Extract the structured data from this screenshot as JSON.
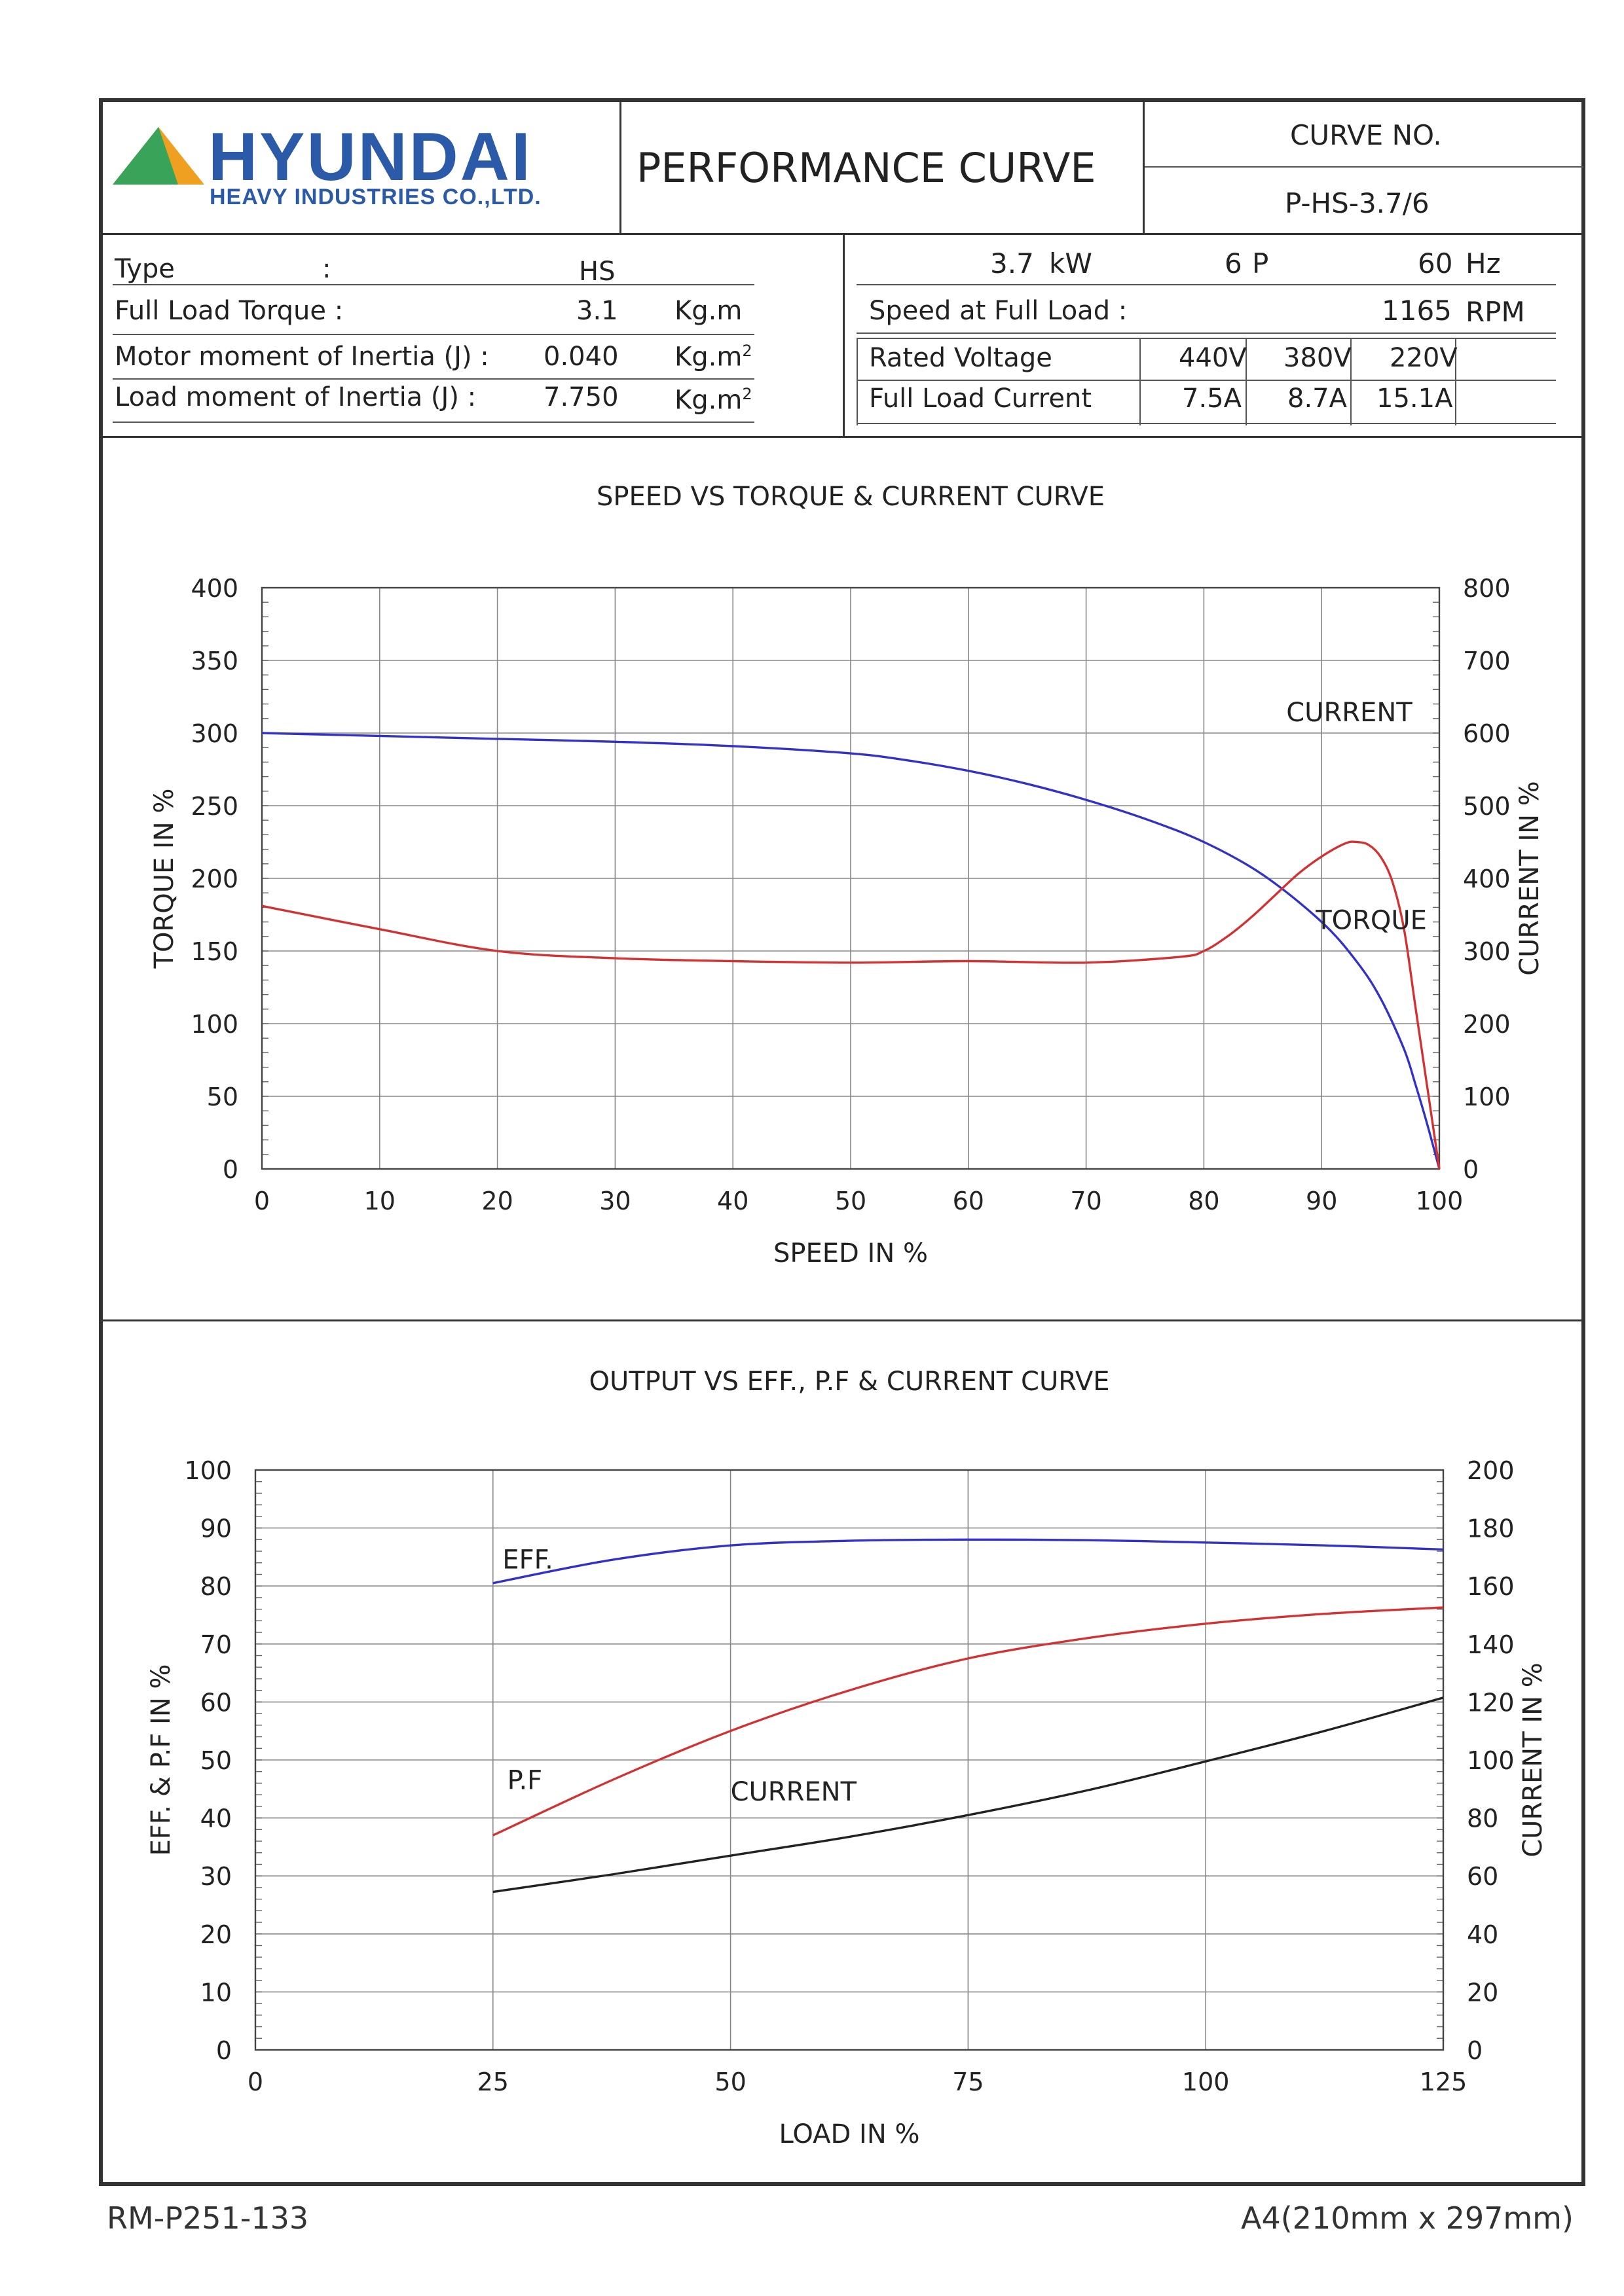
{
  "header": {
    "logo_main": "HYUNDAI",
    "logo_sub": "HEAVY INDUSTRIES CO.,LTD.",
    "doc_title": "PERFORMANCE CURVE",
    "curve_no_label": "CURVE NO.",
    "curve_no": "P-HS-3.7/6"
  },
  "specs_left": {
    "type_label": "Type",
    "type_colon": ":",
    "type_value": "HS",
    "torque_label": "Full Load Torque :",
    "torque_value": "3.1",
    "torque_unit": "Kg.m",
    "motor_inertia_label": "Motor moment of Inertia (J) :",
    "motor_inertia_value": "0.040",
    "motor_inertia_unit": "Kg.m",
    "unit_exp": "2",
    "load_inertia_label": "Load moment of Inertia (J) :",
    "load_inertia_value": "7.750",
    "load_inertia_unit": "Kg.m"
  },
  "specs_right": {
    "power_value": "3.7",
    "power_unit": "kW",
    "poles_value": "6",
    "poles_unit": "P",
    "freq_value": "60",
    "freq_unit": "Hz",
    "speed_label": "Speed at Full Load :",
    "speed_value": "1165",
    "speed_unit": "RPM",
    "voltage_label": "Rated Voltage",
    "voltages": [
      "440V",
      "380V",
      "220V"
    ],
    "current_label": "Full Load Current",
    "currents": [
      "7.5A",
      "8.7A",
      "15.1A"
    ]
  },
  "footer": {
    "left": "RM-P251-133",
    "right": "A4(210mm x 297mm)"
  },
  "colors": {
    "blue": "#3232c8",
    "red": "#d23232",
    "black": "#222222",
    "logo_blue": "#2b5aa8",
    "logo_green": "#3aa35a",
    "logo_orange": "#f0a020"
  },
  "chart_data": [
    {
      "type": "line",
      "title": "SPEED VS TORQUE & CURRENT CURVE",
      "xlabel": "SPEED IN %",
      "ylabel": "TORQUE IN %",
      "y2label": "CURRENT IN %",
      "xlim": [
        0,
        100
      ],
      "ylim": [
        0,
        400
      ],
      "y2lim": [
        0,
        800
      ],
      "xticks": [
        0,
        10,
        20,
        30,
        40,
        50,
        60,
        70,
        80,
        90,
        100
      ],
      "yticks": [
        0,
        50,
        100,
        150,
        200,
        250,
        300,
        350,
        400
      ],
      "y2ticks": [
        0,
        100,
        200,
        300,
        400,
        500,
        600,
        700,
        800
      ],
      "grid": true,
      "series": [
        {
          "name": "CURRENT",
          "axis": "y2",
          "color": "#3232c8",
          "x": [
            0,
            10,
            20,
            30,
            40,
            50,
            55,
            60,
            65,
            70,
            75,
            80,
            85,
            90,
            93,
            95,
            97,
            98,
            99,
            100
          ],
          "y": [
            600,
            596,
            592,
            588,
            582,
            572,
            562,
            548,
            530,
            508,
            482,
            450,
            405,
            340,
            285,
            235,
            165,
            115,
            60,
            0
          ]
        },
        {
          "name": "TORQUE",
          "axis": "y",
          "color": "#d23232",
          "x": [
            0,
            10,
            20,
            30,
            40,
            50,
            60,
            70,
            78,
            80,
            82,
            84,
            86,
            88,
            90,
            92,
            93,
            94,
            95,
            96,
            97,
            98,
            99,
            100
          ],
          "y": [
            181,
            165,
            150,
            145,
            143,
            142,
            143,
            142,
            146,
            150,
            160,
            173,
            188,
            203,
            215,
            224,
            225,
            223,
            215,
            198,
            165,
            110,
            55,
            0
          ]
        }
      ]
    },
    {
      "type": "line",
      "title": "OUTPUT VS EFF., P.F & CURRENT CURVE",
      "xlabel": "LOAD IN %",
      "ylabel": "EFF. & P.F IN %",
      "y2label": "CURRENT IN %",
      "xlim": [
        0,
        125
      ],
      "ylim": [
        0,
        100
      ],
      "y2lim": [
        0,
        200
      ],
      "xticks": [
        0,
        25,
        50,
        75,
        100,
        125
      ],
      "yticks": [
        0,
        10,
        20,
        30,
        40,
        50,
        60,
        70,
        80,
        90,
        100
      ],
      "y2ticks": [
        0,
        20,
        40,
        60,
        80,
        100,
        120,
        140,
        160,
        180,
        200
      ],
      "grid": true,
      "series": [
        {
          "name": "EFF.",
          "axis": "y",
          "color": "#3232c8",
          "x": [
            25,
            37.5,
            50,
            62.5,
            75,
            87.5,
            100,
            112.5,
            125
          ],
          "y": [
            80.5,
            84.5,
            87,
            87.8,
            88,
            87.9,
            87.5,
            87,
            86.3
          ]
        },
        {
          "name": "P.F",
          "axis": "y",
          "color": "#d23232",
          "x": [
            25,
            37.5,
            50,
            62.5,
            75,
            87.5,
            100,
            112.5,
            125
          ],
          "y": [
            37,
            46.5,
            55,
            62,
            67.5,
            71,
            73.5,
            75.2,
            76.3
          ]
        },
        {
          "name": "CURRENT",
          "axis": "y2",
          "color": "#222222",
          "x": [
            25,
            37.5,
            50,
            62.5,
            75,
            87.5,
            100,
            112.5,
            125
          ],
          "y": [
            54.5,
            60.5,
            67,
            73.5,
            81,
            89.5,
            99.5,
            110,
            121.5
          ]
        }
      ]
    }
  ]
}
